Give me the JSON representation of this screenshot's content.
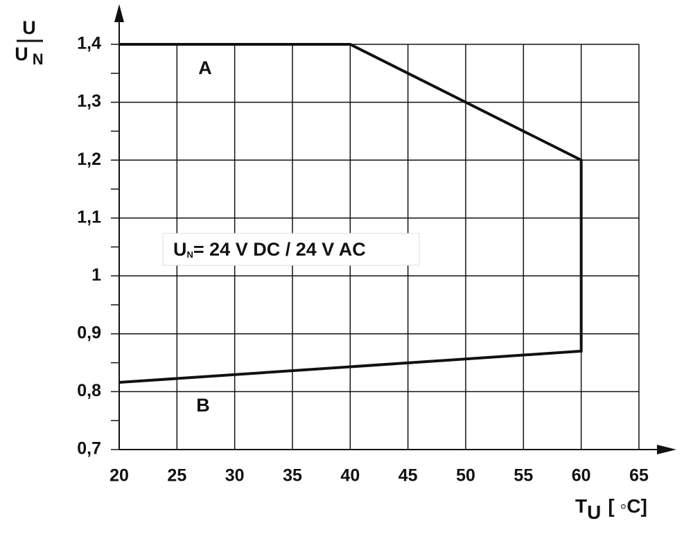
{
  "chart_data": {
    "type": "line",
    "y_label": {
      "numerator": "U",
      "denominator": "U",
      "denominator_sub": "N"
    },
    "x_label": {
      "main": "T",
      "sub": "U",
      "unit": "[ ◦C]"
    },
    "annotations": {
      "upper": "A",
      "lower": "B"
    },
    "note": {
      "main": "U",
      "sub": "N",
      "rest": "= 24 V DC / 24 V AC"
    },
    "x": [
      20,
      40,
      60,
      60,
      20
    ],
    "series": [
      {
        "color": "#111111",
        "values": [
          1.4,
          1.4,
          1.2,
          0.87,
          0.816
        ]
      }
    ],
    "xlim": [
      20,
      65
    ],
    "xticks": [
      20,
      25,
      30,
      35,
      40,
      45,
      50,
      55,
      60,
      65
    ],
    "ylim": [
      0.7,
      1.4
    ],
    "yticks": [
      {
        "value": 0.7,
        "label": "0,7"
      },
      {
        "value": 0.8,
        "label": "0,8"
      },
      {
        "value": 0.9,
        "label": "0,9"
      },
      1,
      {
        "value": 1.1,
        "label": "1,1"
      },
      {
        "value": 1.2,
        "label": "1,2"
      },
      {
        "value": 1.3,
        "label": "1,3"
      },
      {
        "value": 1.4,
        "label": "1,4"
      }
    ],
    "y_minor_ticks": [
      0.75,
      0.85,
      0.95,
      1.05,
      1.15,
      1.25,
      1.35
    ],
    "grid": true
  }
}
